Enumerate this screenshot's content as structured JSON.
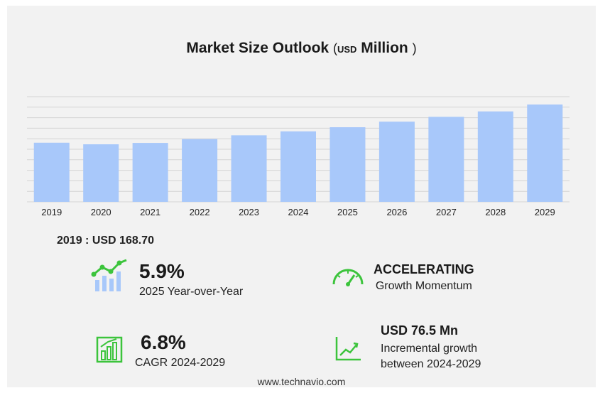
{
  "title": {
    "main": "Market Size Outlook",
    "open": "(",
    "unit_prefix": "USD",
    "unit": "Million",
    "close": ")"
  },
  "chart_data": {
    "type": "bar",
    "categories": [
      "2019",
      "2020",
      "2021",
      "2022",
      "2023",
      "2024",
      "2025",
      "2026",
      "2027",
      "2028",
      "2029"
    ],
    "values": [
      168.7,
      164.1,
      168.1,
      178.9,
      189.8,
      201.0,
      212.8,
      228.7,
      242.4,
      257.9,
      277.5
    ],
    "ylim": [
      0,
      300
    ],
    "grid": true,
    "bar_color": "#a8c8fa"
  },
  "base": {
    "text": "2019 : USD  168.70"
  },
  "stats": {
    "yoy": {
      "value": "5.9%",
      "label": "2025 Year-over-Year"
    },
    "momentum": {
      "value": "ACCELERATING",
      "label": "Growth Momentum"
    },
    "cagr": {
      "value": "6.8%",
      "label": "CAGR 2024-2029"
    },
    "incremental": {
      "value": "USD 76.5 Mn",
      "label1": "Incremental growth",
      "label2": "between 2024-2029"
    }
  },
  "icons": {
    "yoy": "bar-growth-icon",
    "momentum": "speedometer-icon",
    "cagr": "bar-chart-icon",
    "incremental": "trend-line-icon"
  },
  "colors": {
    "accent": "#3cc43c",
    "bar": "#a8c8fa"
  },
  "footer": "www.technavio.com"
}
